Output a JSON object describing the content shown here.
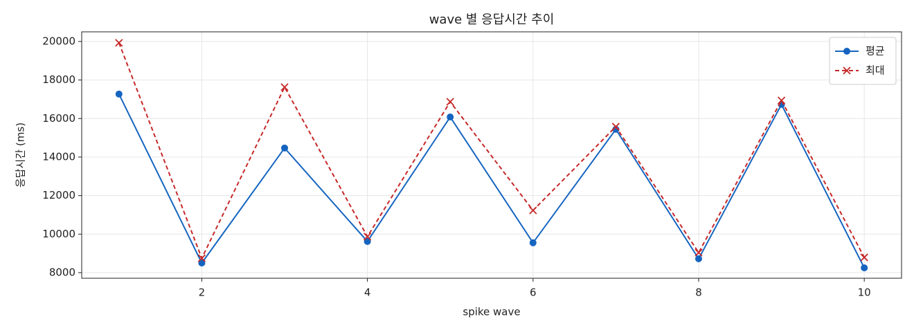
{
  "chart_data": {
    "type": "line",
    "title": "wave 별 응답시간 추이",
    "x_label": "spike wave",
    "y_label": "응답시간 (ms)",
    "x": [
      1,
      2,
      3,
      4,
      5,
      6,
      7,
      8,
      9,
      10
    ],
    "series": [
      {
        "name": "평균",
        "color": "#1565c0",
        "linestyle": "solid",
        "marker": "circle",
        "values": [
          17270,
          8500,
          14470,
          9620,
          16080,
          9550,
          15440,
          8720,
          16730,
          8250
        ]
      },
      {
        "name": "최대",
        "color": "#c62828",
        "linestyle": "dashed",
        "marker": "x",
        "values": [
          19930,
          8750,
          17630,
          9870,
          16870,
          11230,
          15580,
          9040,
          16940,
          8790
        ]
      }
    ],
    "xlim": [
      0.55,
      10.45
    ],
    "xticks": [
      2,
      4,
      6,
      8,
      10
    ],
    "ylim": [
      7710,
      20500
    ],
    "yticks": [
      8000,
      10000,
      12000,
      14000,
      16000,
      18000,
      20000
    ],
    "grid": true,
    "legend": "upper right"
  }
}
